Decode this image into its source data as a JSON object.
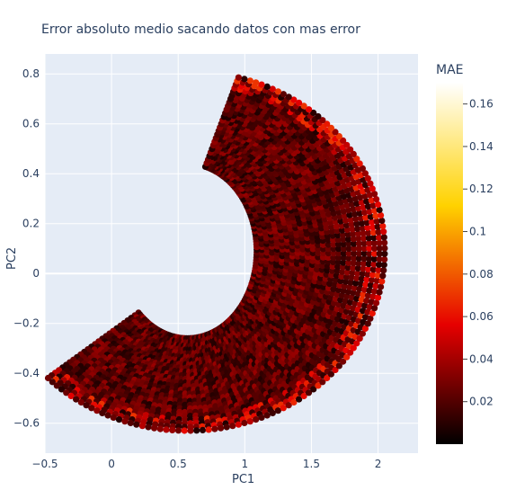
{
  "chart_data": {
    "type": "scatter",
    "title": "Error absoluto medio sacando datos con mas error",
    "xlabel": "PC1",
    "ylabel": "PC2",
    "xlim": [
      -0.5,
      2.3
    ],
    "ylim": [
      -0.72,
      0.88
    ],
    "x_ticks": [
      -0.5,
      0,
      0.5,
      1,
      1.5,
      2
    ],
    "x_tick_labels": [
      "−0.5",
      "0",
      "0.5",
      "1",
      "1.5",
      "2"
    ],
    "y_ticks": [
      -0.6,
      -0.4,
      -0.2,
      0,
      0.2,
      0.4,
      0.6,
      0.8
    ],
    "y_tick_labels": [
      "−0.6",
      "−0.4",
      "−0.2",
      "0",
      "0.2",
      "0.4",
      "0.6",
      "0.8"
    ],
    "grid": true,
    "color_scale": {
      "title": "MAE",
      "range": [
        0.0,
        0.17
      ],
      "ticks": [
        0.02,
        0.04,
        0.06,
        0.08,
        0.1,
        0.12,
        0.14,
        0.16
      ],
      "tick_labels": [
        "0.02",
        "0.04",
        "0.06",
        "0.08",
        "0.1",
        "0.12",
        "0.14",
        "0.16"
      ],
      "colors": [
        "#000000",
        "#e60000",
        "#ffd200",
        "#ffffff"
      ]
    },
    "shape": {
      "center": [
        0.57,
        0.09
      ],
      "outer_radius_x": 1.48,
      "outer_radius_y": 0.72,
      "inner_radius_x": 0.52,
      "inner_radius_y": 0.35,
      "angle_range_deg": [
        -135,
        75
      ],
      "typical_mae": 0.025
    }
  },
  "colors": {
    "plot_bg": "#e5ecf6",
    "grid": "#ffffff",
    "tick_text": "#2a3f5f"
  }
}
